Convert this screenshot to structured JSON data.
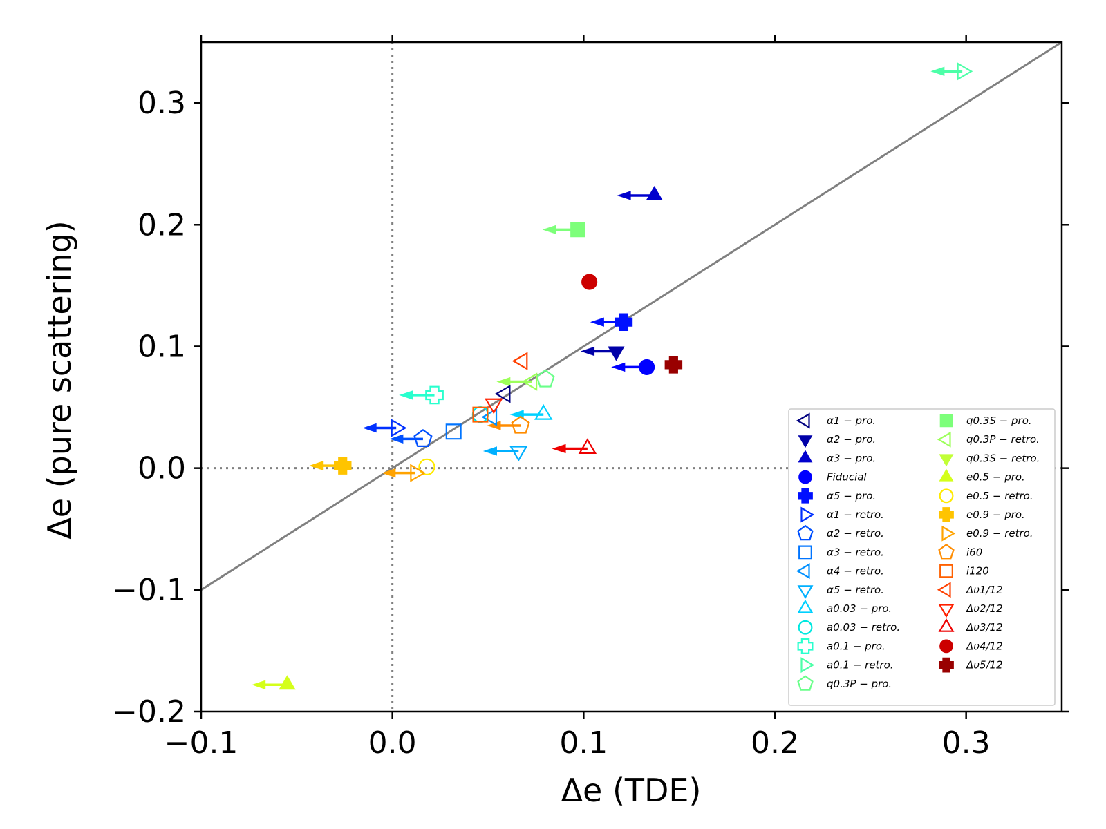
{
  "chart_data": {
    "type": "scatter",
    "xlabel": "Δe (TDE)",
    "ylabel": "Δe (pure scattering)",
    "xlim": [
      -0.1,
      0.35
    ],
    "ylim": [
      -0.2,
      0.35
    ],
    "xticks": [
      -0.1,
      0.0,
      0.1,
      0.2,
      0.3
    ],
    "yticks": [
      -0.2,
      -0.1,
      0.0,
      0.1,
      0.2,
      0.3
    ],
    "xtick_labels": [
      "−0.1",
      "0.0",
      "0.1",
      "0.2",
      "0.3"
    ],
    "ytick_labels": [
      "−0.2",
      "−0.1",
      "0.0",
      "0.1",
      "0.2",
      "0.3"
    ],
    "reference_line": {
      "name": "one-to-one",
      "x": [
        -0.1,
        0.35
      ],
      "y": [
        -0.1,
        0.35
      ],
      "color": "#808080"
    },
    "zero_lines": {
      "x": 0,
      "y": 0,
      "style": "dotted",
      "color": "#808080"
    },
    "legend_placement": "lower-right",
    "series": [
      {
        "name": "α1 − pro.",
        "marker": "triangle-left",
        "filled": false,
        "color": "#000080",
        "x": 0.059,
        "y": 0.061,
        "arrow_to_x": null
      },
      {
        "name": "α2 − pro.",
        "marker": "triangle-down",
        "filled": true,
        "color": "#0000a8",
        "x": 0.117,
        "y": 0.096,
        "arrow_to_x": 0.099
      },
      {
        "name": "α3 − pro.",
        "marker": "triangle-up",
        "filled": true,
        "color": "#0000cd",
        "x": 0.137,
        "y": 0.224,
        "arrow_to_x": 0.118
      },
      {
        "name": "Fiducial",
        "marker": "circle",
        "filled": true,
        "color": "#0000ff",
        "x": 0.133,
        "y": 0.083,
        "arrow_to_x": 0.115
      },
      {
        "name": "α5 − pro.",
        "marker": "x-filled",
        "filled": true,
        "color": "#0010ff",
        "x": 0.121,
        "y": 0.12,
        "arrow_to_x": 0.104
      },
      {
        "name": "α1 − retro.",
        "marker": "triangle-right",
        "filled": false,
        "color": "#0030ff",
        "x": 0.002,
        "y": 0.033,
        "arrow_to_x": -0.015
      },
      {
        "name": "α2 − retro.",
        "marker": "pentagon",
        "filled": false,
        "color": "#0050ff",
        "x": 0.016,
        "y": 0.024,
        "arrow_to_x": -0.001
      },
      {
        "name": "α3 − retro.",
        "marker": "square",
        "filled": false,
        "color": "#0074ff",
        "x": 0.032,
        "y": 0.03,
        "arrow_to_x": null
      },
      {
        "name": "α4 − retro.",
        "marker": "triangle-left",
        "filled": false,
        "color": "#0090ff",
        "x": 0.052,
        "y": 0.042,
        "arrow_to_x": null
      },
      {
        "name": "α5 − retro.",
        "marker": "triangle-down",
        "filled": false,
        "color": "#00b0ff",
        "x": 0.066,
        "y": 0.014,
        "arrow_to_x": 0.048
      },
      {
        "name": "a0.03 − pro.",
        "marker": "triangle-up",
        "filled": false,
        "color": "#00d0ff",
        "x": 0.079,
        "y": 0.044,
        "arrow_to_x": 0.062
      },
      {
        "name": "a0.03 − retro.",
        "marker": "circle",
        "filled": false,
        "color": "#00e8e0",
        "x": 0.046,
        "y": 0.044,
        "arrow_to_x": null
      },
      {
        "name": "a0.1 − pro.",
        "marker": "x-open",
        "filled": false,
        "color": "#29ffce",
        "x": 0.022,
        "y": 0.06,
        "arrow_to_x": 0.004
      },
      {
        "name": "a0.1 − retro.",
        "marker": "triangle-right",
        "filled": false,
        "color": "#4dffa8",
        "x": 0.298,
        "y": 0.326,
        "arrow_to_x": 0.282
      },
      {
        "name": "q0.3P − pro.",
        "marker": "pentagon",
        "filled": false,
        "color": "#6aff8a",
        "x": 0.08,
        "y": 0.073,
        "arrow_to_x": null
      },
      {
        "name": "q0.3S − pro.",
        "marker": "square",
        "filled": true,
        "color": "#7dff7a",
        "x": 0.097,
        "y": 0.196,
        "arrow_to_x": 0.079
      },
      {
        "name": "q0.3P − retro.",
        "marker": "triangle-left",
        "filled": false,
        "color": "#9cff5a",
        "x": 0.073,
        "y": 0.071,
        "arrow_to_x": 0.055
      },
      {
        "name": "q0.3S − retro.",
        "marker": "triangle-down",
        "filled": true,
        "color": "#c1ff36",
        "x": null,
        "y": null,
        "arrow_to_x": null
      },
      {
        "name": "e0.5 − pro.",
        "marker": "triangle-up",
        "filled": true,
        "color": "#d4ff1a",
        "x": -0.055,
        "y": -0.178,
        "arrow_to_x": -0.073
      },
      {
        "name": "e0.5 − retro.",
        "marker": "circle",
        "filled": false,
        "color": "#ffea00",
        "x": 0.018,
        "y": 0.001,
        "arrow_to_x": null
      },
      {
        "name": "e0.9 − pro.",
        "marker": "x-filled",
        "filled": true,
        "color": "#ffc400",
        "x": -0.026,
        "y": 0.002,
        "arrow_to_x": -0.043
      },
      {
        "name": "e0.9 − retro.",
        "marker": "triangle-right",
        "filled": false,
        "color": "#ffa300",
        "x": 0.012,
        "y": -0.004,
        "arrow_to_x": -0.005
      },
      {
        "name": "i60",
        "marker": "pentagon",
        "filled": false,
        "color": "#ff8c00",
        "x": 0.067,
        "y": 0.035,
        "arrow_to_x": 0.05
      },
      {
        "name": "i120",
        "marker": "square",
        "filled": false,
        "color": "#ff6000",
        "x": 0.046,
        "y": 0.044,
        "arrow_to_x": null
      },
      {
        "name": "Δυ1/12",
        "marker": "triangle-left",
        "filled": false,
        "color": "#ff4000",
        "x": 0.068,
        "y": 0.088,
        "arrow_to_x": null
      },
      {
        "name": "Δυ2/12",
        "marker": "triangle-down",
        "filled": false,
        "color": "#ff2000",
        "x": 0.053,
        "y": 0.053,
        "arrow_to_x": null
      },
      {
        "name": "Δυ3/12",
        "marker": "triangle-up",
        "filled": false,
        "color": "#ee0000",
        "x": 0.102,
        "y": 0.016,
        "arrow_to_x": 0.084
      },
      {
        "name": "Δυ4/12",
        "marker": "circle",
        "filled": true,
        "color": "#cc0000",
        "x": 0.103,
        "y": 0.153,
        "arrow_to_x": null
      },
      {
        "name": "Δυ5/12",
        "marker": "x-filled",
        "filled": true,
        "color": "#990000",
        "x": 0.147,
        "y": 0.085,
        "arrow_to_x": null
      }
    ]
  }
}
